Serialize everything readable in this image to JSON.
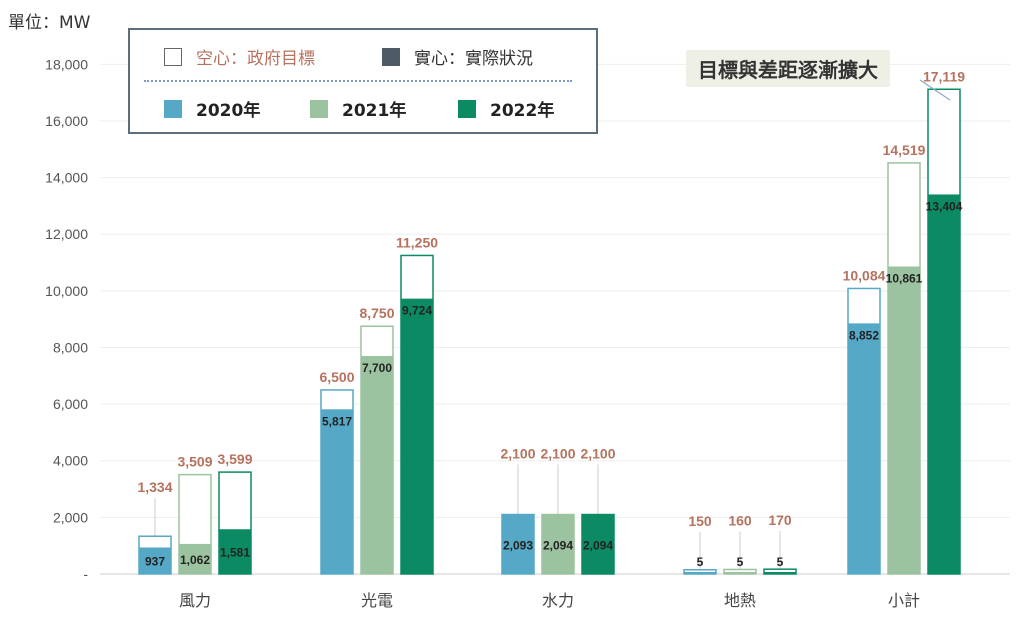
{
  "unit_label": "單位：MW",
  "legend": {
    "hollow_label": "空心：政府目標",
    "solid_label": "實心：實際狀況",
    "hollow_color": "#b5735f",
    "solid_swatch_color": "#4e5a66",
    "years": [
      {
        "label": "2020年",
        "color": "#56a9c6"
      },
      {
        "label": "2021年",
        "color": "#9cc39f"
      },
      {
        "label": "2022年",
        "color": "#0b8a63"
      }
    ]
  },
  "callout": "目標與差距逐漸擴大",
  "chart_data": {
    "type": "bar",
    "categories": [
      "風力",
      "光電",
      "水力",
      "地熱",
      "小計"
    ],
    "ylim": [
      0,
      19000
    ],
    "yticks": [
      0,
      2000,
      4000,
      6000,
      8000,
      10000,
      12000,
      14000,
      16000,
      18000
    ],
    "ytick_labels": [
      "-",
      "2,000",
      "4,000",
      "6,000",
      "8,000",
      "10,000",
      "12,000",
      "14,000",
      "16,000",
      "18,000"
    ],
    "grid": true,
    "series": [
      {
        "name": "2020年",
        "color": "#56a9c6",
        "targets": [
          1334,
          6500,
          2100,
          150,
          10084
        ],
        "target_labels": [
          "1,334",
          "6,500",
          "2,100",
          "150",
          "10,084"
        ],
        "actuals": [
          937,
          5817,
          2093,
          5,
          8852
        ],
        "actual_labels": [
          "937",
          "5,817",
          "2,093",
          "5",
          "8,852"
        ]
      },
      {
        "name": "2021年",
        "color": "#9cc39f",
        "targets": [
          3509,
          8750,
          2100,
          160,
          14519
        ],
        "target_labels": [
          "3,509",
          "8,750",
          "2,100",
          "160",
          "14,519"
        ],
        "actuals": [
          1062,
          7700,
          2094,
          5,
          10861
        ],
        "actual_labels": [
          "1,062",
          "7,700",
          "2,094",
          "5",
          "10,861"
        ]
      },
      {
        "name": "2022年",
        "color": "#0b8a63",
        "targets": [
          3599,
          11250,
          2100,
          170,
          17119
        ],
        "target_labels": [
          "3,599",
          "11,250",
          "2,100",
          "170",
          "17,119"
        ],
        "actuals": [
          1581,
          9724,
          2094,
          5,
          13404
        ],
        "actual_labels": [
          "1,581",
          "9,724",
          "2,094",
          "5",
          "13,404"
        ]
      }
    ]
  }
}
